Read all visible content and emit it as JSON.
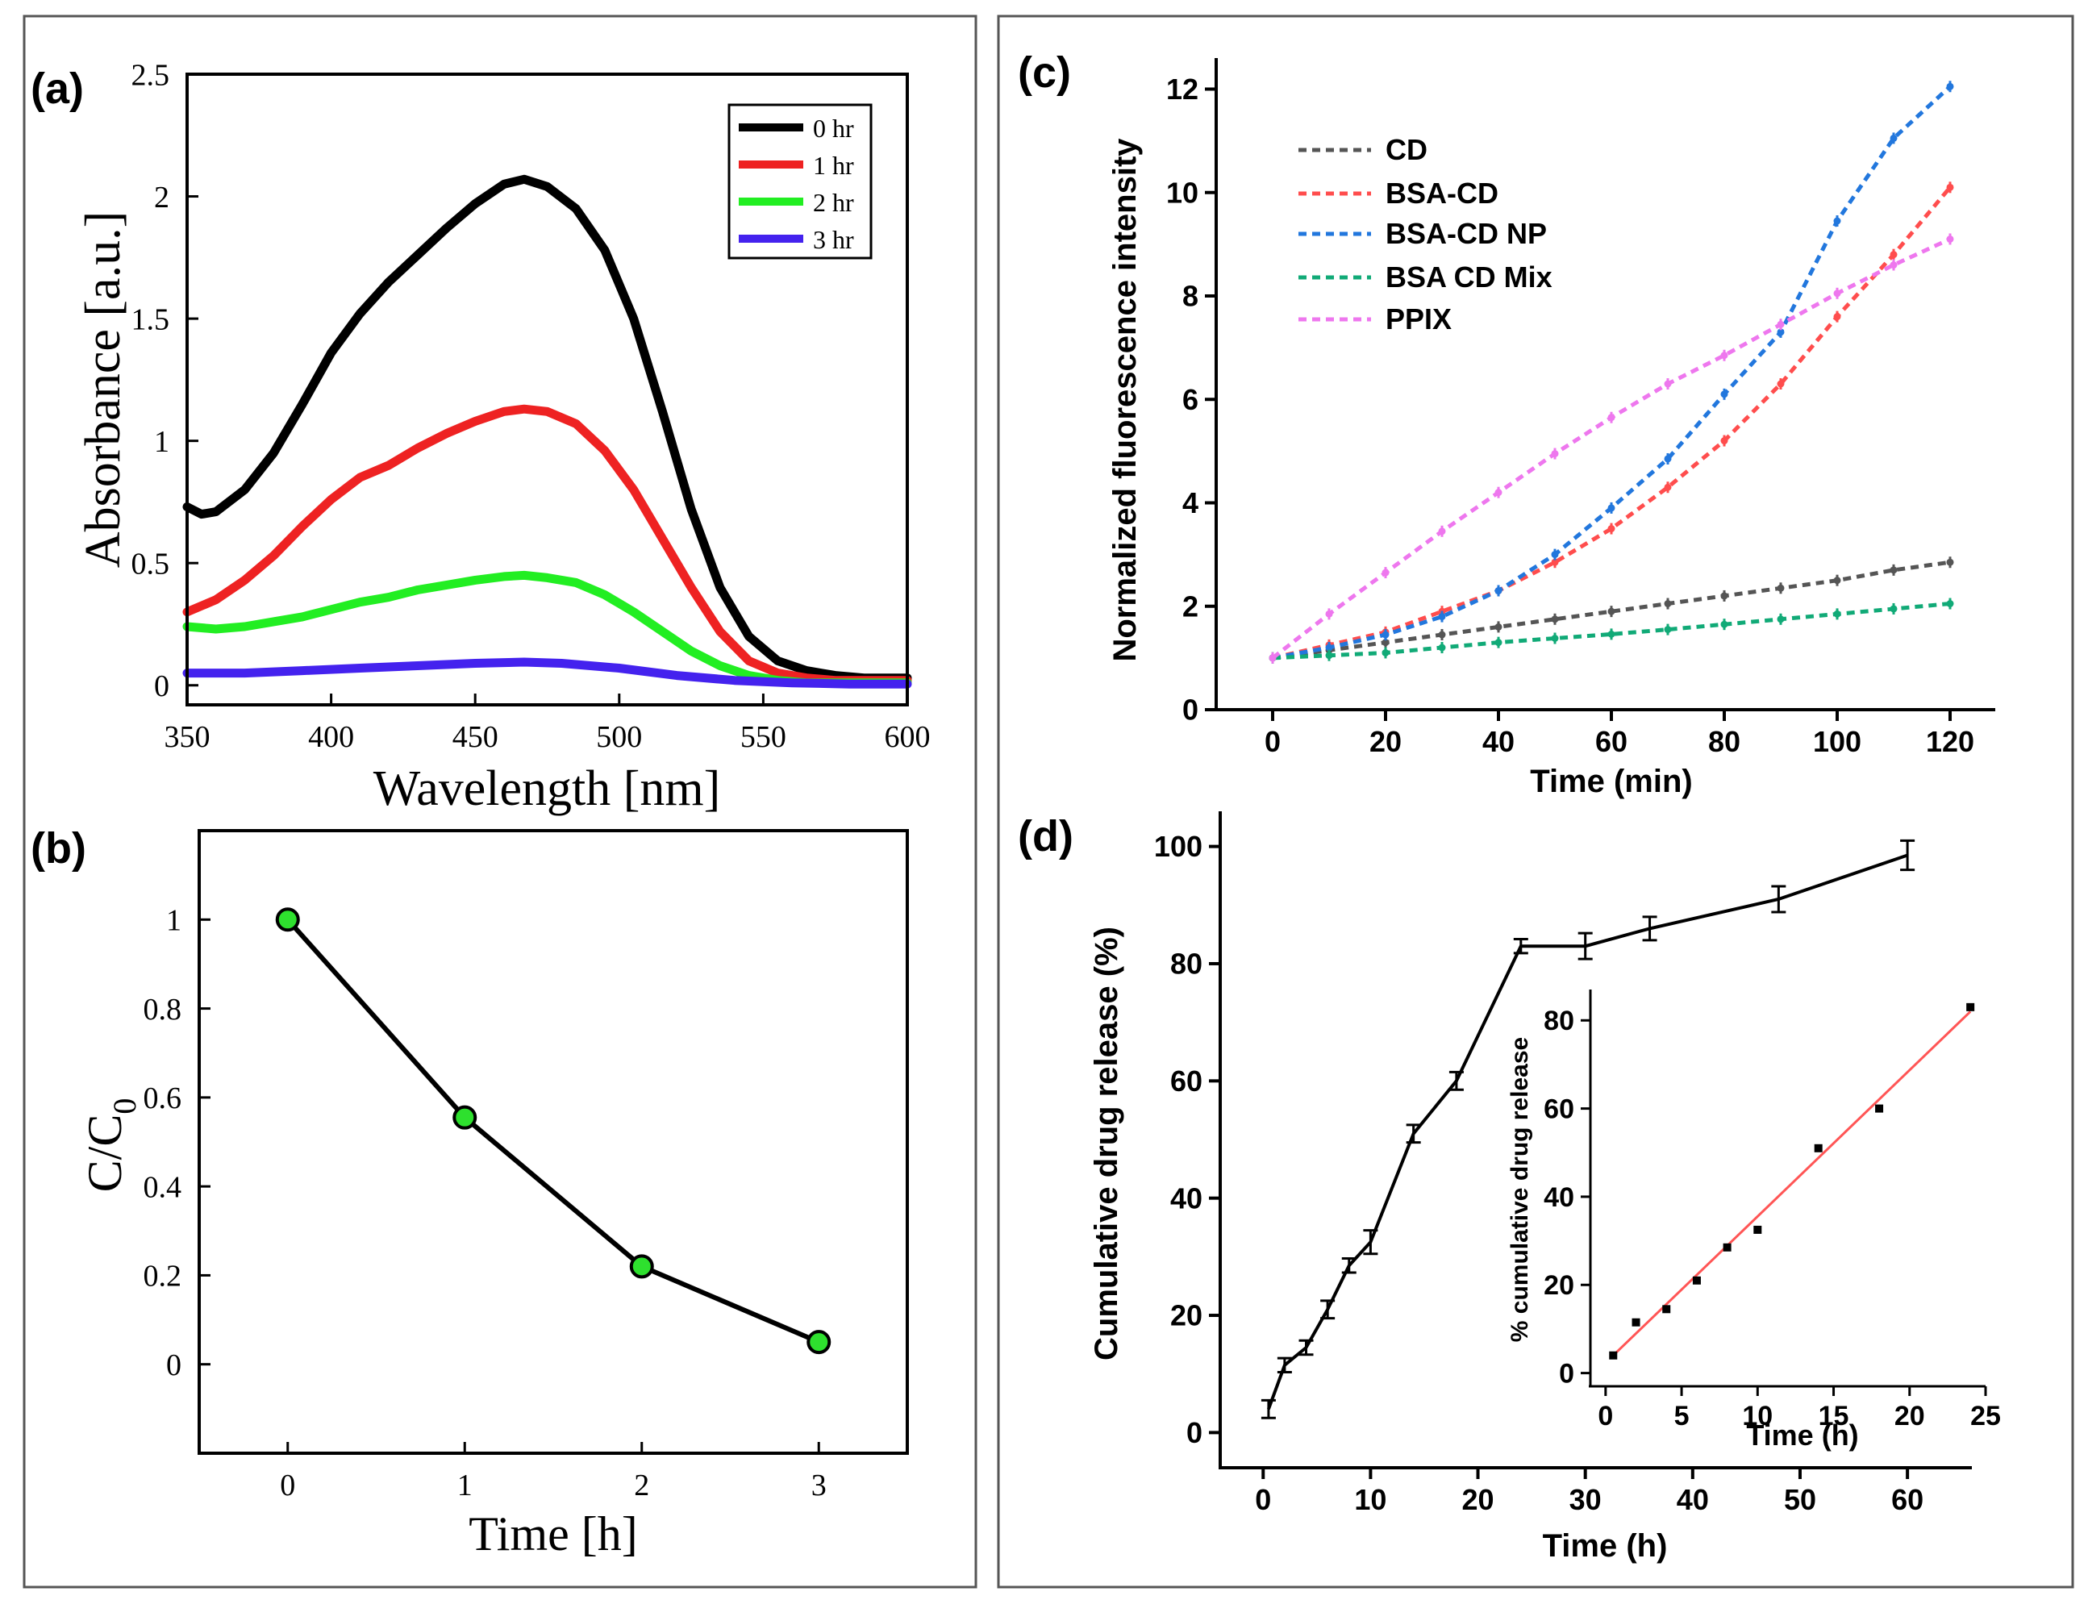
{
  "figure": {
    "colors": {
      "frame": "#555555",
      "axis": "#000000",
      "text": "#000000"
    }
  },
  "chart_data": [
    {
      "id": "a",
      "panel_label": "(a)",
      "type": "line",
      "xlabel": "Wavelength [nm]",
      "ylabel": "Absorbance [a.u.]",
      "xlim": [
        350,
        600
      ],
      "ylim": [
        -0.08,
        2.5
      ],
      "xticks": [
        350,
        400,
        450,
        500,
        550,
        600
      ],
      "xtick_labels": [
        "350",
        "400",
        "450",
        "500",
        "550",
        "600"
      ],
      "yticks": [
        0,
        0.5,
        1,
        1.5,
        2,
        2.5
      ],
      "ytick_labels": [
        "0",
        "0.5",
        "1",
        "1.5",
        "2",
        "2.5"
      ],
      "legend_position": "top-right",
      "series": [
        {
          "name": "0 hr",
          "color": "#000000",
          "x": [
            350,
            355,
            360,
            370,
            380,
            390,
            400,
            410,
            420,
            430,
            440,
            450,
            460,
            467,
            475,
            485,
            495,
            505,
            515,
            525,
            535,
            545,
            555,
            565,
            575,
            585,
            600
          ],
          "y": [
            0.73,
            0.7,
            0.71,
            0.8,
            0.95,
            1.15,
            1.36,
            1.52,
            1.65,
            1.76,
            1.87,
            1.97,
            2.05,
            2.07,
            2.04,
            1.95,
            1.78,
            1.5,
            1.12,
            0.72,
            0.4,
            0.2,
            0.1,
            0.06,
            0.04,
            0.03,
            0.03
          ]
        },
        {
          "name": "1 hr",
          "color": "#ee2222",
          "x": [
            350,
            360,
            370,
            380,
            390,
            400,
            410,
            420,
            430,
            440,
            450,
            460,
            467,
            475,
            485,
            495,
            505,
            515,
            525,
            535,
            545,
            555,
            565,
            575,
            585,
            600
          ],
          "y": [
            0.3,
            0.35,
            0.43,
            0.53,
            0.65,
            0.76,
            0.85,
            0.9,
            0.97,
            1.03,
            1.08,
            1.12,
            1.13,
            1.12,
            1.07,
            0.96,
            0.8,
            0.6,
            0.4,
            0.22,
            0.1,
            0.05,
            0.03,
            0.02,
            0.02,
            0.02
          ]
        },
        {
          "name": "2 hr",
          "color": "#22ee22",
          "x": [
            350,
            360,
            370,
            380,
            390,
            400,
            410,
            420,
            430,
            440,
            450,
            460,
            467,
            475,
            485,
            495,
            505,
            515,
            525,
            535,
            545,
            555,
            565,
            575,
            585,
            600
          ],
          "y": [
            0.24,
            0.23,
            0.24,
            0.26,
            0.28,
            0.31,
            0.34,
            0.36,
            0.39,
            0.41,
            0.43,
            0.445,
            0.45,
            0.44,
            0.42,
            0.37,
            0.3,
            0.22,
            0.14,
            0.08,
            0.04,
            0.02,
            0.01,
            0.01,
            0.01,
            0.01
          ]
        },
        {
          "name": "3 hr",
          "color": "#4422ee",
          "x": [
            350,
            370,
            390,
            410,
            430,
            450,
            467,
            480,
            500,
            520,
            540,
            560,
            580,
            600
          ],
          "y": [
            0.05,
            0.05,
            0.06,
            0.07,
            0.08,
            0.09,
            0.095,
            0.09,
            0.07,
            0.04,
            0.02,
            0.01,
            0.005,
            0.005
          ]
        }
      ]
    },
    {
      "id": "b",
      "panel_label": "(b)",
      "type": "line",
      "xlabel": "Time [h]",
      "ylabel": "C/C",
      "ylabel_sub": "0",
      "xlim": [
        -0.5,
        3.5
      ],
      "ylim": [
        -0.2,
        1.2
      ],
      "xticks": [
        0,
        1,
        2,
        3
      ],
      "xtick_labels": [
        "0",
        "1",
        "2",
        "3"
      ],
      "yticks": [
        0,
        0.2,
        0.4,
        0.6,
        0.8,
        1
      ],
      "ytick_labels": [
        "0",
        "0.2",
        "0.4",
        "0.6",
        "0.8",
        "1"
      ],
      "series": [
        {
          "name": "C/C0",
          "color": "#000000",
          "marker_color": "#2ee02e",
          "x": [
            0,
            1,
            2,
            3
          ],
          "y": [
            1.0,
            0.555,
            0.22,
            0.05
          ]
        }
      ]
    },
    {
      "id": "c",
      "panel_label": "(c)",
      "type": "line",
      "xlabel": "Time (min)",
      "ylabel": "Normalized fluorescence intensity",
      "xlim": [
        -10,
        128
      ],
      "ylim": [
        0,
        12.6
      ],
      "xticks": [
        0,
        20,
        40,
        60,
        80,
        100,
        120
      ],
      "xtick_labels": [
        "0",
        "20",
        "40",
        "60",
        "80",
        "100",
        "120"
      ],
      "yticks": [
        0,
        2,
        4,
        6,
        8,
        10,
        12
      ],
      "ytick_labels": [
        "0",
        "2",
        "4",
        "6",
        "8",
        "10",
        "12"
      ],
      "legend_position": "top-left",
      "x": [
        0,
        10,
        20,
        30,
        40,
        50,
        60,
        70,
        80,
        90,
        100,
        110,
        120
      ],
      "series": [
        {
          "name": "CD",
          "color": "#555555",
          "y": [
            1.0,
            1.15,
            1.3,
            1.45,
            1.6,
            1.75,
            1.9,
            2.05,
            2.2,
            2.35,
            2.5,
            2.7,
            2.85
          ]
        },
        {
          "name": "BSA-CD",
          "color": "#ff4d4d",
          "y": [
            1.0,
            1.25,
            1.5,
            1.9,
            2.3,
            2.85,
            3.5,
            4.3,
            5.2,
            6.3,
            7.6,
            8.8,
            10.1
          ]
        },
        {
          "name": "BSA-CD NP",
          "color": "#2277dd",
          "y": [
            1.0,
            1.2,
            1.45,
            1.8,
            2.3,
            3.0,
            3.9,
            4.85,
            6.1,
            7.3,
            9.45,
            11.05,
            12.05
          ]
        },
        {
          "name": "BSA CD Mix",
          "color": "#11aa77",
          "y": [
            1.0,
            1.05,
            1.1,
            1.2,
            1.3,
            1.38,
            1.46,
            1.55,
            1.65,
            1.75,
            1.85,
            1.95,
            2.05
          ]
        },
        {
          "name": "PPIX",
          "color": "#ee77ee",
          "y": [
            1.0,
            1.85,
            2.65,
            3.45,
            4.2,
            4.95,
            5.65,
            6.3,
            6.85,
            7.45,
            8.05,
            8.6,
            9.1
          ]
        }
      ]
    },
    {
      "id": "d",
      "panel_label": "(d)",
      "type": "line",
      "xlabel": "Time (h)",
      "ylabel": "Cumulative drug release (%)",
      "xlim": [
        -4,
        66
      ],
      "ylim": [
        -6,
        106
      ],
      "xticks": [
        0,
        10,
        20,
        30,
        40,
        50,
        60
      ],
      "xtick_labels": [
        "0",
        "10",
        "20",
        "30",
        "40",
        "50",
        "60"
      ],
      "yticks": [
        0,
        20,
        40,
        60,
        80,
        100
      ],
      "ytick_labels": [
        "0",
        "20",
        "40",
        "60",
        "80",
        "100"
      ],
      "series": [
        {
          "name": "release",
          "color": "#000000",
          "x": [
            0.5,
            2,
            4,
            6,
            8,
            10,
            14,
            18,
            24,
            30,
            36,
            48,
            60
          ],
          "y": [
            4,
            11.5,
            14.5,
            21,
            28.5,
            32.5,
            51,
            60,
            83,
            83,
            86,
            91,
            98.5
          ],
          "err": [
            1.5,
            1.2,
            1.2,
            1.5,
            1.2,
            2,
            1.5,
            1.5,
            1.2,
            2.2,
            2,
            2.2,
            2.5
          ]
        }
      ],
      "inset": {
        "type": "scatter",
        "xlabel": "Time (h)",
        "ylabel": "% cumulative drug release",
        "xlim": [
          -1,
          25
        ],
        "ylim": [
          -3,
          87
        ],
        "xticks": [
          0,
          5,
          10,
          15,
          20,
          25
        ],
        "xtick_labels": [
          "0",
          "5",
          "10",
          "15",
          "20",
          "25"
        ],
        "yticks": [
          0,
          20,
          40,
          60,
          80
        ],
        "ytick_labels": [
          "0",
          "20",
          "40",
          "60",
          "80"
        ],
        "points": {
          "x": [
            0.5,
            2,
            4,
            6,
            8,
            10,
            14,
            18,
            24
          ],
          "y": [
            4,
            11.5,
            14.5,
            21,
            28.5,
            32.5,
            51,
            60,
            83
          ]
        },
        "fit": {
          "color": "#ff5555",
          "x": [
            0.5,
            24
          ],
          "y": [
            4,
            82
          ]
        }
      }
    }
  ]
}
